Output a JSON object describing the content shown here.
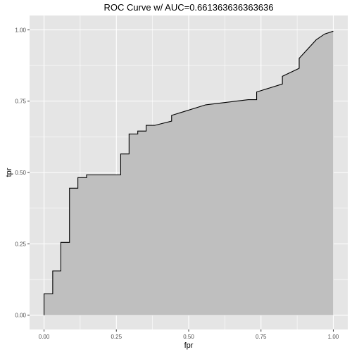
{
  "chart_data": {
    "type": "area",
    "title": "ROC Curve w/ AUC=0.661363636363636",
    "xlabel": "fpr",
    "ylabel": "tpr",
    "xlim": [
      -0.05,
      1.05
    ],
    "ylim": [
      -0.05,
      1.05
    ],
    "x_ticks": [
      0.0,
      0.25,
      0.5,
      0.75,
      1.0
    ],
    "x_tick_labels": [
      "0.00",
      "0.25",
      "0.50",
      "0.75",
      "1.00"
    ],
    "y_ticks": [
      0.0,
      0.25,
      0.5,
      0.75,
      1.0
    ],
    "y_tick_labels": [
      "0.00",
      "0.25",
      "0.50",
      "0.75",
      "1.00"
    ],
    "grid": true,
    "colors": {
      "panel_background": "#e5e5e5",
      "grid": "#ffffff",
      "fill": "#bfbfbf",
      "line": "#000000"
    },
    "series": [
      {
        "points": [
          [
            0.0,
            0.0
          ],
          [
            0.0,
            0.075
          ],
          [
            0.03,
            0.075
          ],
          [
            0.03,
            0.155
          ],
          [
            0.058,
            0.155
          ],
          [
            0.058,
            0.255
          ],
          [
            0.088,
            0.255
          ],
          [
            0.088,
            0.445
          ],
          [
            0.117,
            0.445
          ],
          [
            0.117,
            0.482
          ],
          [
            0.147,
            0.482
          ],
          [
            0.147,
            0.492
          ],
          [
            0.265,
            0.492
          ],
          [
            0.265,
            0.565
          ],
          [
            0.294,
            0.565
          ],
          [
            0.294,
            0.635
          ],
          [
            0.324,
            0.635
          ],
          [
            0.324,
            0.645
          ],
          [
            0.353,
            0.645
          ],
          [
            0.353,
            0.665
          ],
          [
            0.382,
            0.665
          ],
          [
            0.441,
            0.68
          ],
          [
            0.441,
            0.7
          ],
          [
            0.559,
            0.737
          ],
          [
            0.706,
            0.755
          ],
          [
            0.735,
            0.755
          ],
          [
            0.735,
            0.782
          ],
          [
            0.824,
            0.81
          ],
          [
            0.824,
            0.837
          ],
          [
            0.882,
            0.865
          ],
          [
            0.882,
            0.9
          ],
          [
            0.941,
            0.965
          ],
          [
            0.97,
            0.985
          ],
          [
            1.0,
            0.995
          ]
        ]
      }
    ]
  }
}
